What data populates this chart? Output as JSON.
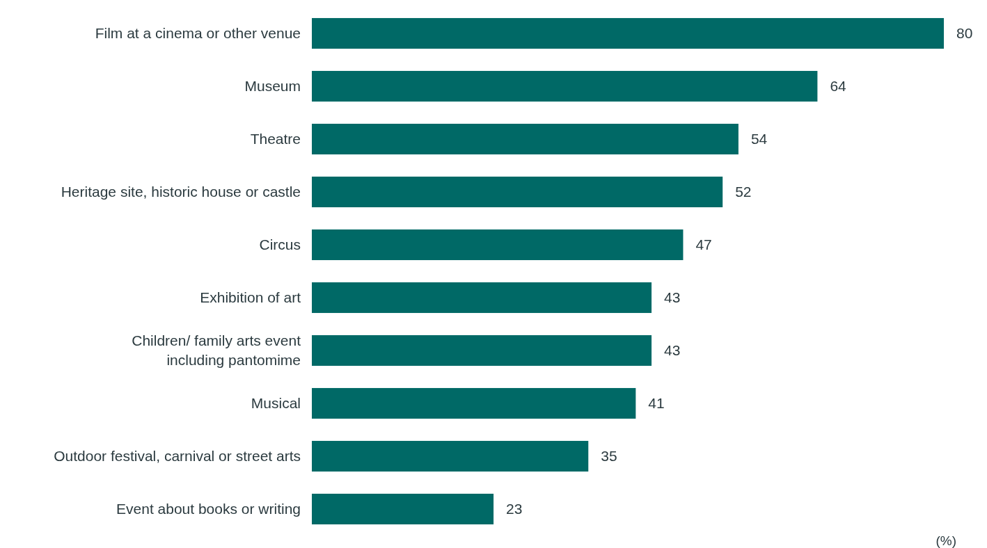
{
  "chart_data": {
    "type": "bar",
    "orientation": "horizontal",
    "relative": false,
    "categories": [
      "Film at a cinema or other venue",
      "Museum",
      "Theatre",
      "Heritage site, historic house or castle",
      "Circus",
      "Exhibition of art",
      "Children/ family arts event including pantomime",
      "Musical",
      "Outdoor festival, carnival or street arts",
      "Event about books or writing"
    ],
    "values": [
      80,
      64,
      54,
      52,
      47,
      43,
      43,
      41,
      35,
      23
    ],
    "color": "#006966",
    "data_labels": true,
    "annotations": [
      "(%)"
    ]
  }
}
